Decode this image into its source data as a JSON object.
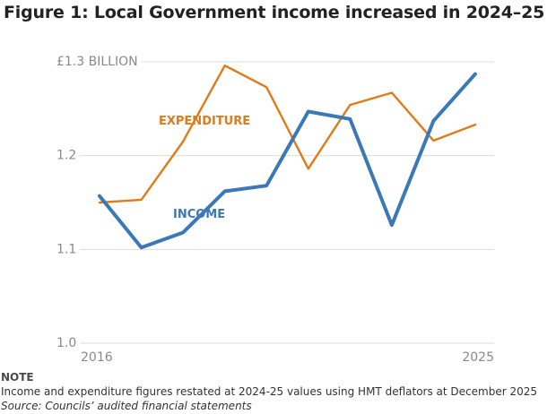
{
  "title": "Figure 1: Local Government income increased in 2024–25",
  "chart_data": {
    "type": "line",
    "x": [
      2016,
      2017,
      2018,
      2019,
      2020,
      2021,
      2022,
      2023,
      2024,
      2025
    ],
    "x_tick_labels": [
      "2016",
      "2025"
    ],
    "y_ticks": [
      {
        "value": 1.0,
        "label": "1.0"
      },
      {
        "value": 1.1,
        "label": "1.1"
      },
      {
        "value": 1.2,
        "label": "1.2"
      },
      {
        "value": 1.3,
        "label": "£1.3 BILLION"
      }
    ],
    "ylim": [
      1.0,
      1.3
    ],
    "grid": true,
    "series": [
      {
        "name": "EXPENDITURE",
        "color": "#e07b1a",
        "values": [
          1.15,
          1.153,
          1.215,
          1.296,
          1.273,
          1.186,
          1.254,
          1.267,
          1.216,
          1.233
        ]
      },
      {
        "name": "INCOME",
        "color": "#3a78b8",
        "values": [
          1.157,
          1.102,
          1.118,
          1.162,
          1.168,
          1.247,
          1.239,
          1.126,
          1.237,
          1.287
        ]
      }
    ]
  },
  "notes": {
    "heading": "NOTE",
    "text": "Income and expenditure figures restated at 2024-25 values using HMT deflators at December 2025",
    "source": "Source: Councils’ audited financial statements"
  }
}
